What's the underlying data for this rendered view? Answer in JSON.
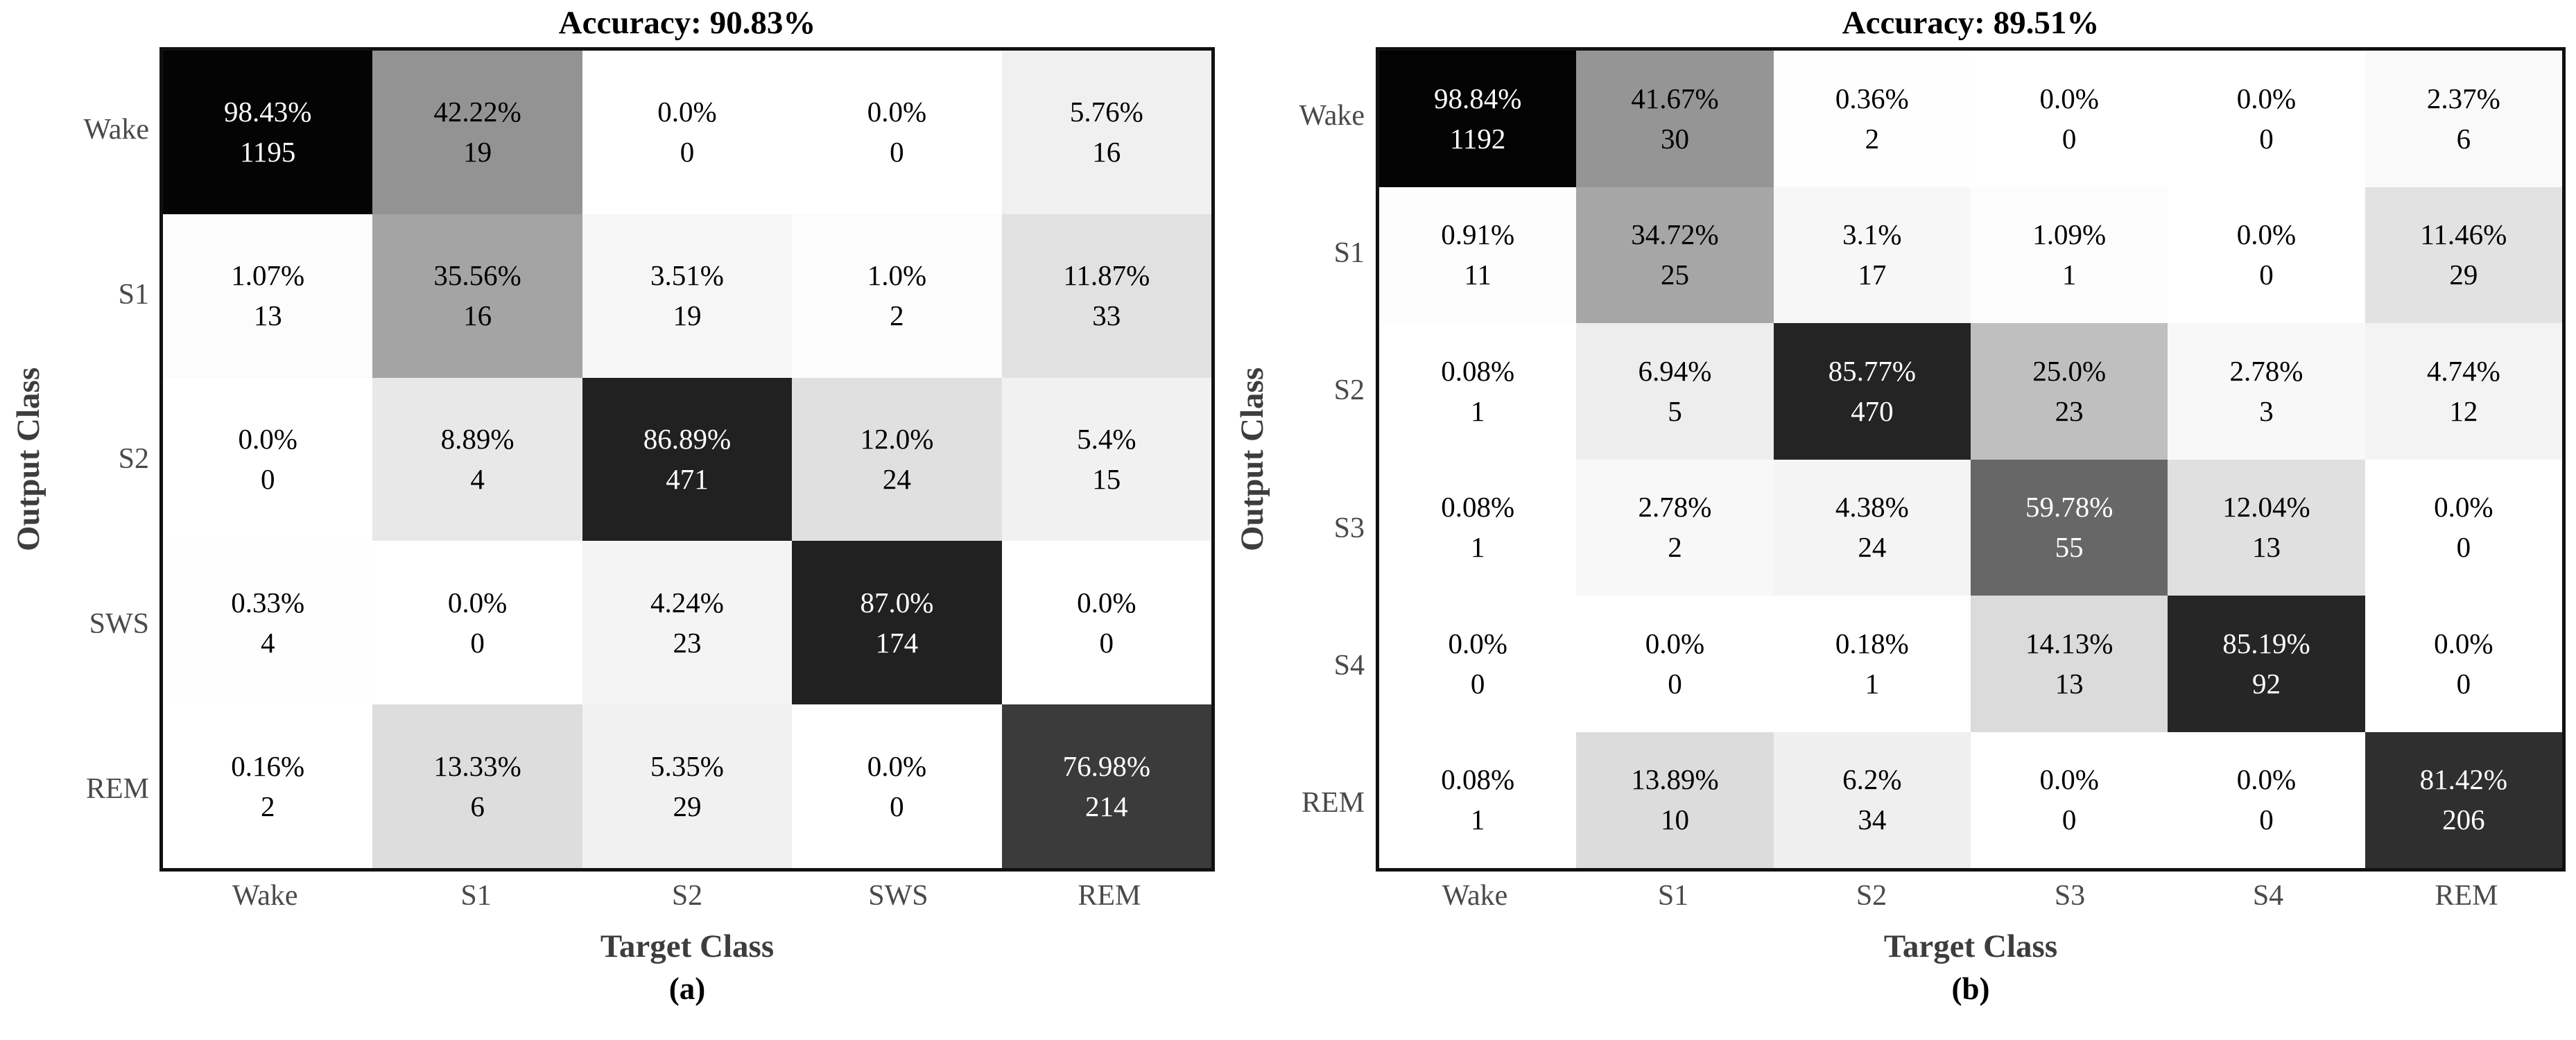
{
  "page": {
    "background_color": "#ffffff"
  },
  "colormap": {
    "low_color": "#ffffff",
    "high_color": "#000000",
    "dark_text": "#000000",
    "light_text": "#ffffff",
    "text_switch_percent": 50,
    "tick_label_color": "#4a4a4a",
    "axis_label_color": "#3d3d3d",
    "title_color": "#000000"
  },
  "chart_data": [
    {
      "type": "heatmap",
      "id": "a",
      "title": "Accuracy: 90.83%",
      "accuracy_percent": 90.83,
      "xlabel": "Target Class",
      "ylabel": "Output Class",
      "subfig_label": "(a)",
      "col_labels": [
        "Wake",
        "S1",
        "S2",
        "SWS",
        "REM"
      ],
      "row_labels": [
        "Wake",
        "S1",
        "S2",
        "SWS",
        "REM"
      ],
      "cells": [
        [
          {
            "percent": "98.43%",
            "count": "1195",
            "value": 98.43
          },
          {
            "percent": "42.22%",
            "count": "19",
            "value": 42.22
          },
          {
            "percent": "0.0%",
            "count": "0",
            "value": 0.0
          },
          {
            "percent": "0.0%",
            "count": "0",
            "value": 0.0
          },
          {
            "percent": "5.76%",
            "count": "16",
            "value": 5.76
          }
        ],
        [
          {
            "percent": "1.07%",
            "count": "13",
            "value": 1.07
          },
          {
            "percent": "35.56%",
            "count": "16",
            "value": 35.56
          },
          {
            "percent": "3.51%",
            "count": "19",
            "value": 3.51
          },
          {
            "percent": "1.0%",
            "count": "2",
            "value": 1.0
          },
          {
            "percent": "11.87%",
            "count": "33",
            "value": 11.87
          }
        ],
        [
          {
            "percent": "0.0%",
            "count": "0",
            "value": 0.0
          },
          {
            "percent": "8.89%",
            "count": "4",
            "value": 8.89
          },
          {
            "percent": "86.89%",
            "count": "471",
            "value": 86.89
          },
          {
            "percent": "12.0%",
            "count": "24",
            "value": 12.0
          },
          {
            "percent": "5.4%",
            "count": "15",
            "value": 5.4
          }
        ],
        [
          {
            "percent": "0.33%",
            "count": "4",
            "value": 0.33
          },
          {
            "percent": "0.0%",
            "count": "0",
            "value": 0.0
          },
          {
            "percent": "4.24%",
            "count": "23",
            "value": 4.24
          },
          {
            "percent": "87.0%",
            "count": "174",
            "value": 87.0
          },
          {
            "percent": "0.0%",
            "count": "0",
            "value": 0.0
          }
        ],
        [
          {
            "percent": "0.16%",
            "count": "2",
            "value": 0.16
          },
          {
            "percent": "13.33%",
            "count": "6",
            "value": 13.33
          },
          {
            "percent": "5.35%",
            "count": "29",
            "value": 5.35
          },
          {
            "percent": "0.0%",
            "count": "0",
            "value": 0.0
          },
          {
            "percent": "76.98%",
            "count": "214",
            "value": 76.98
          }
        ]
      ]
    },
    {
      "type": "heatmap",
      "id": "b",
      "title": "Accuracy: 89.51%",
      "accuracy_percent": 89.51,
      "xlabel": "Target Class",
      "ylabel": "Output Class",
      "subfig_label": "(b)",
      "col_labels": [
        "Wake",
        "S1",
        "S2",
        "S3",
        "S4",
        "REM"
      ],
      "row_labels": [
        "Wake",
        "S1",
        "S2",
        "S3",
        "S4",
        "REM"
      ],
      "cells": [
        [
          {
            "percent": "98.84%",
            "count": "1192",
            "value": 98.84
          },
          {
            "percent": "41.67%",
            "count": "30",
            "value": 41.67
          },
          {
            "percent": "0.36%",
            "count": "2",
            "value": 0.36
          },
          {
            "percent": "0.0%",
            "count": "0",
            "value": 0.0
          },
          {
            "percent": "0.0%",
            "count": "0",
            "value": 0.0
          },
          {
            "percent": "2.37%",
            "count": "6",
            "value": 2.37
          }
        ],
        [
          {
            "percent": "0.91%",
            "count": "11",
            "value": 0.91
          },
          {
            "percent": "34.72%",
            "count": "25",
            "value": 34.72
          },
          {
            "percent": "3.1%",
            "count": "17",
            "value": 3.1
          },
          {
            "percent": "1.09%",
            "count": "1",
            "value": 1.09
          },
          {
            "percent": "0.0%",
            "count": "0",
            "value": 0.0
          },
          {
            "percent": "11.46%",
            "count": "29",
            "value": 11.46
          }
        ],
        [
          {
            "percent": "0.08%",
            "count": "1",
            "value": 0.08
          },
          {
            "percent": "6.94%",
            "count": "5",
            "value": 6.94
          },
          {
            "percent": "85.77%",
            "count": "470",
            "value": 85.77
          },
          {
            "percent": "25.0%",
            "count": "23",
            "value": 25.0
          },
          {
            "percent": "2.78%",
            "count": "3",
            "value": 2.78
          },
          {
            "percent": "4.74%",
            "count": "12",
            "value": 4.74
          }
        ],
        [
          {
            "percent": "0.08%",
            "count": "1",
            "value": 0.08
          },
          {
            "percent": "2.78%",
            "count": "2",
            "value": 2.78
          },
          {
            "percent": "4.38%",
            "count": "24",
            "value": 4.38
          },
          {
            "percent": "59.78%",
            "count": "55",
            "value": 59.78
          },
          {
            "percent": "12.04%",
            "count": "13",
            "value": 12.04
          },
          {
            "percent": "0.0%",
            "count": "0",
            "value": 0.0
          }
        ],
        [
          {
            "percent": "0.0%",
            "count": "0",
            "value": 0.0
          },
          {
            "percent": "0.0%",
            "count": "0",
            "value": 0.0
          },
          {
            "percent": "0.18%",
            "count": "1",
            "value": 0.18
          },
          {
            "percent": "14.13%",
            "count": "13",
            "value": 14.13
          },
          {
            "percent": "85.19%",
            "count": "92",
            "value": 85.19
          },
          {
            "percent": "0.0%",
            "count": "0",
            "value": 0.0
          }
        ],
        [
          {
            "percent": "0.08%",
            "count": "1",
            "value": 0.08
          },
          {
            "percent": "13.89%",
            "count": "10",
            "value": 13.89
          },
          {
            "percent": "6.2%",
            "count": "34",
            "value": 6.2
          },
          {
            "percent": "0.0%",
            "count": "0",
            "value": 0.0
          },
          {
            "percent": "0.0%",
            "count": "0",
            "value": 0.0
          },
          {
            "percent": "81.42%",
            "count": "206",
            "value": 81.42
          }
        ]
      ]
    }
  ]
}
